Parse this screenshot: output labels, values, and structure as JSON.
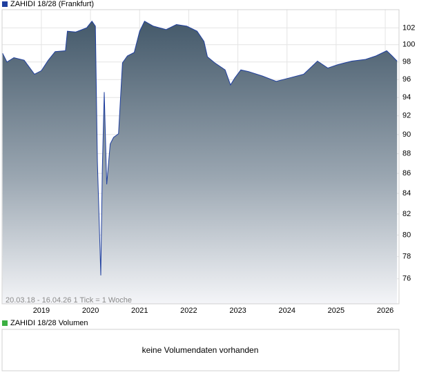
{
  "chart_data": {
    "type": "area",
    "title": "ZAHIDI 18/28 (Frankfurt)",
    "annotation": "20.03.18 - 16.04.26   1 Tick = 1 Woche",
    "color": "#1f3f9f",
    "log_scale": true,
    "grid": true,
    "x": [
      2018.21,
      2018.3,
      2018.44,
      2018.65,
      2018.86,
      2019.0,
      2019.14,
      2019.28,
      2019.49,
      2019.53,
      2019.7,
      2019.92,
      2020.03,
      2020.1,
      2020.14,
      2020.21,
      2020.24,
      2020.28,
      2020.33,
      2020.4,
      2020.47,
      2020.57,
      2020.65,
      2020.75,
      2020.89,
      2021.0,
      2021.1,
      2021.28,
      2021.54,
      2021.75,
      2021.96,
      2022.17,
      2022.31,
      2022.38,
      2022.53,
      2022.74,
      2022.85,
      2022.94,
      2023.06,
      2023.22,
      2023.5,
      2023.78,
      2024.06,
      2024.34,
      2024.62,
      2024.83,
      2025.04,
      2025.32,
      2025.6,
      2025.81,
      2026.03,
      2026.14,
      2026.24
    ],
    "values": [
      99.0,
      98.0,
      98.5,
      98.2,
      96.6,
      97.0,
      98.2,
      99.2,
      99.3,
      101.6,
      101.5,
      102.0,
      102.8,
      102.2,
      87.2,
      76.3,
      86.4,
      94.6,
      84.9,
      89.0,
      89.7,
      90.1,
      97.9,
      98.7,
      99.1,
      101.6,
      102.8,
      102.2,
      101.8,
      102.4,
      102.2,
      101.6,
      100.4,
      98.6,
      97.9,
      97.1,
      95.4,
      96.2,
      97.1,
      96.9,
      96.4,
      95.8,
      96.2,
      96.6,
      98.1,
      97.3,
      97.7,
      98.1,
      98.3,
      98.7,
      99.3,
      98.7,
      98.1
    ],
    "xlim": [
      2018.2,
      2026.28
    ],
    "xticks": [
      2019,
      2020,
      2021,
      2022,
      2023,
      2024,
      2025,
      2026
    ],
    "ylim": [
      73.8,
      104.2
    ],
    "yticks": [
      76,
      78,
      80,
      82,
      84,
      86,
      88,
      90,
      92,
      94,
      96,
      98,
      100,
      102
    ]
  },
  "volume_panel": {
    "title": "ZAHIDI 18/28 Volumen",
    "message": "keine Volumendaten vorhanden",
    "color": "#3cb043"
  }
}
